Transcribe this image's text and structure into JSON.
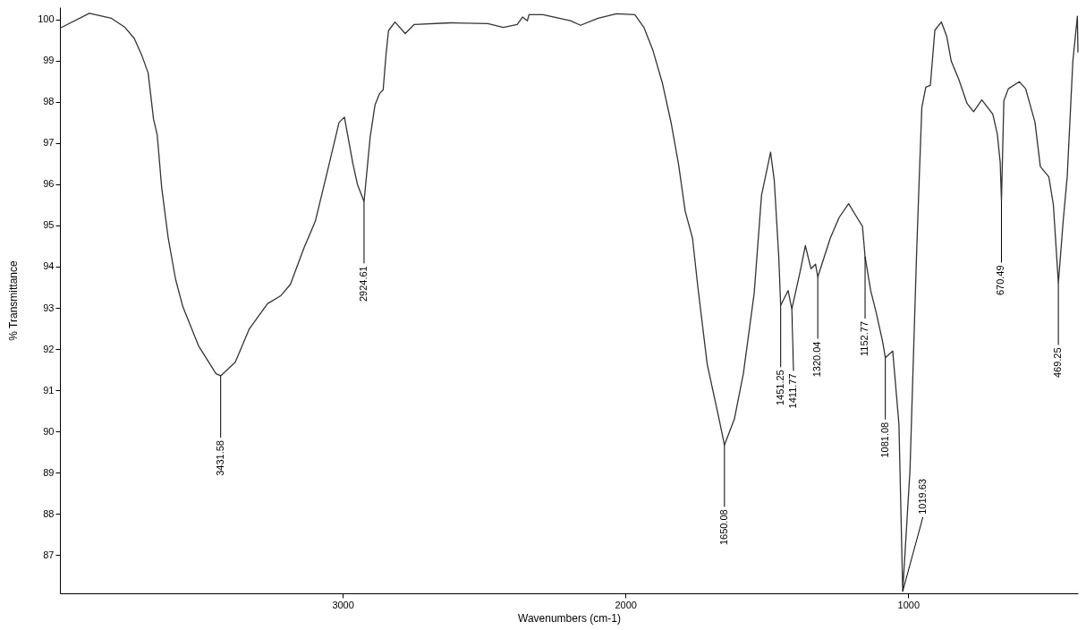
{
  "chart_data": {
    "type": "line",
    "xlabel": "Wavenumbers (cm-1)",
    "ylabel": "% Transmittance",
    "xlim": [
      4000,
      400
    ],
    "ylim": [
      86.07,
      100.3
    ],
    "xticks": [
      3000,
      2000,
      1000
    ],
    "yticks": [
      87,
      88,
      89,
      90,
      91,
      92,
      93,
      94,
      95,
      96,
      97,
      98,
      99,
      100
    ],
    "grid": false,
    "marker": "none",
    "x": [
      4000,
      3896,
      3818,
      3770,
      3737,
      3711,
      3688,
      3669,
      3656,
      3640,
      3617,
      3591,
      3565,
      3510,
      3448,
      3431.58,
      3380,
      3331,
      3266,
      3218,
      3185,
      3136,
      3097,
      3055,
      3013,
      2994,
      2964,
      2948,
      2924.61,
      2903,
      2886,
      2870,
      2857,
      2847,
      2838,
      2815,
      2779,
      2747,
      2617,
      2487,
      2432,
      2383,
      2364,
      2347,
      2341,
      2292,
      2195,
      2159,
      2097,
      2032,
      1967,
      1935,
      1903,
      1870,
      1838,
      1812,
      1789,
      1763,
      1744,
      1711,
      1669,
      1650.08,
      1615,
      1583,
      1545,
      1519,
      1487,
      1474,
      1458,
      1451.25,
      1425,
      1411.77,
      1383,
      1364,
      1344,
      1328,
      1320.04,
      1276,
      1244,
      1211,
      1182,
      1162,
      1152.77,
      1133,
      1114,
      1091,
      1081.08,
      1055,
      1033,
      1019.63,
      994,
      971,
      962,
      952,
      938,
      922,
      906,
      883,
      864,
      848,
      821,
      792,
      769,
      740,
      701,
      685,
      675,
      670.49,
      662,
      646,
      607,
      585,
      552,
      533,
      503,
      487,
      469.25,
      452,
      438,
      418,
      402,
      400
    ],
    "series": [
      {
        "color": "#333333",
        "values": [
          99.79,
          100.15,
          100.03,
          99.81,
          99.54,
          99.14,
          98.7,
          97.58,
          97.2,
          95.91,
          94.69,
          93.69,
          93.02,
          92.08,
          91.4,
          91.35,
          91.68,
          92.48,
          93.1,
          93.3,
          93.57,
          94.47,
          95.1,
          96.29,
          97.5,
          97.63,
          96.5,
          96.0,
          95.58,
          97.14,
          97.92,
          98.2,
          98.29,
          99.14,
          99.73,
          99.94,
          99.66,
          99.88,
          99.92,
          99.9,
          99.81,
          99.88,
          100.06,
          99.97,
          100.12,
          100.12,
          99.97,
          99.86,
          100.03,
          100.14,
          100.12,
          99.81,
          99.25,
          98.47,
          97.47,
          96.47,
          95.35,
          94.69,
          93.5,
          91.63,
          90.3,
          89.67,
          90.3,
          91.41,
          93.35,
          95.73,
          96.78,
          96.1,
          94.24,
          93.06,
          93.42,
          92.97,
          93.86,
          94.51,
          93.95,
          94.06,
          93.75,
          94.69,
          95.2,
          95.53,
          95.2,
          94.98,
          94.24,
          93.42,
          92.9,
          92.19,
          91.79,
          91.95,
          90.17,
          86.12,
          89.05,
          94.24,
          96.0,
          97.87,
          98.36,
          98.4,
          99.74,
          99.94,
          99.59,
          98.99,
          98.54,
          97.96,
          97.76,
          98.05,
          97.7,
          97.21,
          96.54,
          95.6,
          98.03,
          98.32,
          98.49,
          98.32,
          97.51,
          96.43,
          96.18,
          95.51,
          93.6,
          95.13,
          96.18,
          98.99,
          100.08,
          99.2
        ]
      }
    ],
    "annotations": [
      {
        "text": "3431.58",
        "x": 3431.58,
        "y": 91.35
      },
      {
        "text": "2924.61",
        "x": 2924.61,
        "y": 95.58
      },
      {
        "text": "1650.08",
        "x": 1650.08,
        "y": 89.67
      },
      {
        "text": "1451.25",
        "x": 1451.25,
        "y": 93.06
      },
      {
        "text": "1411.77",
        "x": 1411.77,
        "y": 92.97
      },
      {
        "text": "1320.04",
        "x": 1320.04,
        "y": 93.75
      },
      {
        "text": "1152.77",
        "x": 1152.77,
        "y": 94.24
      },
      {
        "text": "1081.08",
        "x": 1081.08,
        "y": 91.79
      },
      {
        "text": "1019.63",
        "x": 1019.63,
        "y": 86.12
      },
      {
        "text": "670.49",
        "x": 670.49,
        "y": 95.6
      },
      {
        "text": "469.25",
        "x": 469.25,
        "y": 93.6
      }
    ]
  }
}
